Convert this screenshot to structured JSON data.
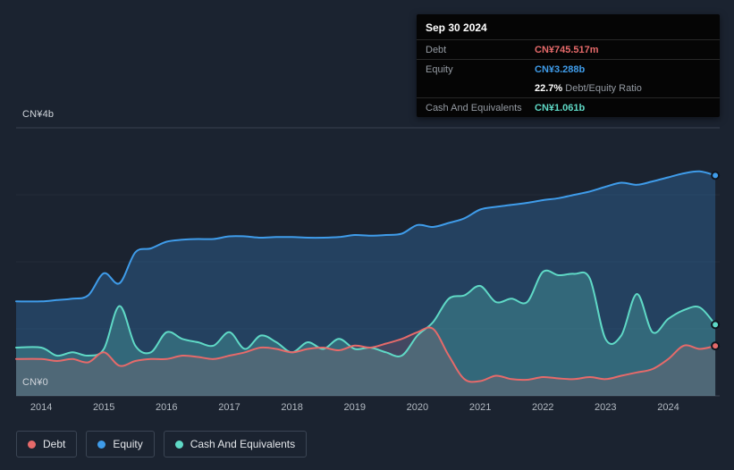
{
  "tooltip": {
    "date": "Sep 30 2024",
    "debt": {
      "label": "Debt",
      "value": "CN¥745.517m"
    },
    "equity": {
      "label": "Equity",
      "value": "CN¥3.288b"
    },
    "ratio": {
      "percent": "22.7%",
      "label": "Debt/Equity Ratio"
    },
    "cash": {
      "label": "Cash And Equivalents",
      "value": "CN¥1.061b"
    }
  },
  "legend": {
    "items": [
      {
        "label": "Debt"
      },
      {
        "label": "Equity"
      },
      {
        "label": "Cash And Equivalents"
      }
    ]
  },
  "colors": {
    "background": "#1b2330"
  },
  "chart_data": {
    "type": "area",
    "x_ticks": [
      2014,
      2015,
      2016,
      2017,
      2018,
      2019,
      2020,
      2021,
      2022,
      2023,
      2024
    ],
    "ylim": [
      0,
      4
    ],
    "y_axis": {
      "top_label": "CN¥4b",
      "bottom_label": "CN¥0"
    },
    "grid": true,
    "legend_position": "bottom-left",
    "x": [
      2013.6,
      2014.0,
      2014.25,
      2014.5,
      2014.75,
      2015.0,
      2015.25,
      2015.5,
      2015.75,
      2016.0,
      2016.25,
      2016.5,
      2016.75,
      2017.0,
      2017.25,
      2017.5,
      2017.75,
      2018.0,
      2018.25,
      2018.5,
      2018.75,
      2019.0,
      2019.25,
      2019.5,
      2019.75,
      2020.0,
      2020.25,
      2020.5,
      2020.75,
      2021.0,
      2021.25,
      2021.5,
      2021.75,
      2022.0,
      2022.25,
      2022.5,
      2022.75,
      2023.0,
      2023.25,
      2023.5,
      2023.75,
      2024.0,
      2024.25,
      2024.5,
      2024.75
    ],
    "series": [
      {
        "name": "Debt",
        "color": "#e66a6a",
        "fill_opacity": 0.16,
        "values": [
          0.55,
          0.55,
          0.52,
          0.55,
          0.5,
          0.65,
          0.45,
          0.52,
          0.55,
          0.55,
          0.6,
          0.58,
          0.55,
          0.6,
          0.65,
          0.72,
          0.7,
          0.65,
          0.7,
          0.72,
          0.68,
          0.75,
          0.72,
          0.78,
          0.85,
          0.95,
          1.0,
          0.6,
          0.25,
          0.22,
          0.3,
          0.25,
          0.24,
          0.28,
          0.26,
          0.25,
          0.28,
          0.25,
          0.3,
          0.35,
          0.4,
          0.55,
          0.75,
          0.7,
          0.746
        ]
      },
      {
        "name": "Equity",
        "color": "#3f9cea",
        "fill_opacity": 0.26,
        "values": [
          1.41,
          1.41,
          1.43,
          1.45,
          1.5,
          1.83,
          1.68,
          2.14,
          2.2,
          2.3,
          2.33,
          2.34,
          2.34,
          2.38,
          2.38,
          2.36,
          2.37,
          2.37,
          2.36,
          2.36,
          2.37,
          2.4,
          2.39,
          2.4,
          2.42,
          2.55,
          2.52,
          2.58,
          2.65,
          2.78,
          2.82,
          2.85,
          2.88,
          2.92,
          2.95,
          3.0,
          3.05,
          3.12,
          3.18,
          3.15,
          3.2,
          3.26,
          3.32,
          3.35,
          3.288
        ]
      },
      {
        "name": "Cash And Equivalents",
        "color": "#5fd9c6",
        "fill_opacity": 0.26,
        "values": [
          0.72,
          0.72,
          0.6,
          0.65,
          0.6,
          0.7,
          1.34,
          0.75,
          0.65,
          0.95,
          0.85,
          0.8,
          0.75,
          0.95,
          0.7,
          0.9,
          0.8,
          0.65,
          0.8,
          0.7,
          0.85,
          0.7,
          0.72,
          0.65,
          0.6,
          0.9,
          1.1,
          1.45,
          1.5,
          1.64,
          1.4,
          1.45,
          1.4,
          1.85,
          1.8,
          1.82,
          1.75,
          0.85,
          0.9,
          1.52,
          0.95,
          1.15,
          1.28,
          1.32,
          1.061
        ]
      }
    ]
  }
}
